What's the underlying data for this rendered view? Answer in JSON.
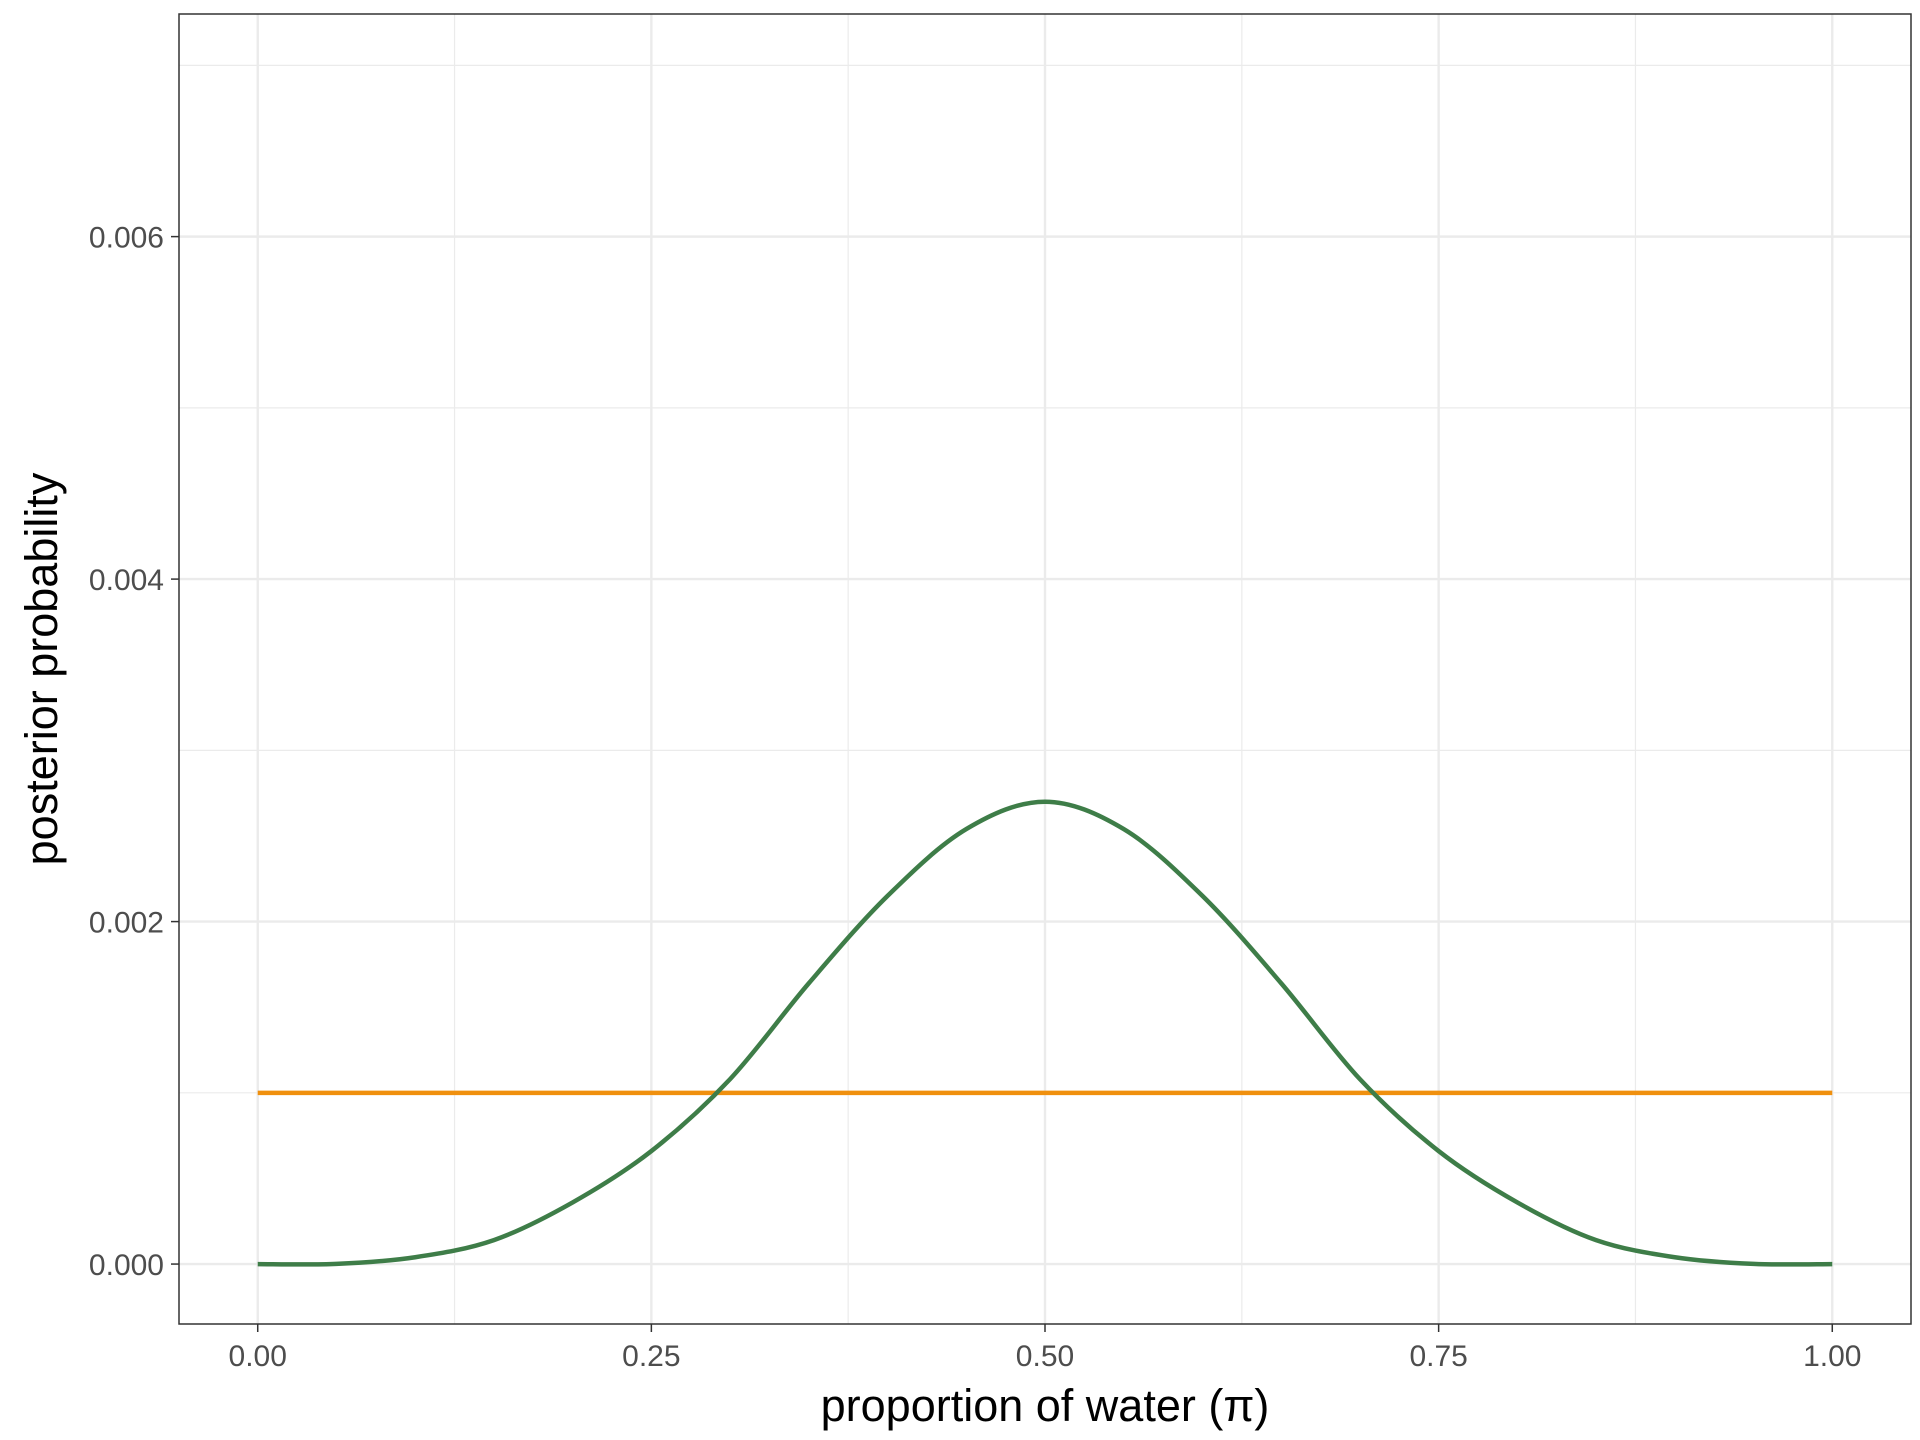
{
  "chart_data": {
    "type": "line",
    "title": "",
    "xlabel": "proportion of water (π)",
    "ylabel": "posterior probability",
    "xlim": [
      -0.05,
      1.05
    ],
    "ylim": [
      -0.00035,
      0.0073
    ],
    "x_ticks": [
      0,
      0.25,
      0.5,
      0.75,
      1
    ],
    "x_tick_labels": [
      "0.00",
      "0.25",
      "0.50",
      "0.75",
      "1.00"
    ],
    "y_ticks": [
      0,
      0.002,
      0.004,
      0.006
    ],
    "y_tick_labels": [
      "0.000",
      "0.002",
      "0.004",
      "0.006"
    ],
    "grid": true,
    "legend": "none",
    "series": [
      {
        "color": "#F0900E",
        "x": [
          0,
          1
        ],
        "y": [
          0.001,
          0.001
        ]
      },
      {
        "color": "#3E7D48",
        "x": [
          0,
          0.05,
          0.1,
          0.15,
          0.2,
          0.25,
          0.3,
          0.35,
          0.4,
          0.45,
          0.5,
          0.55,
          0.6,
          0.65,
          0.7,
          0.75,
          0.8,
          0.85,
          0.9,
          0.95,
          1
        ],
        "y": [
          0,
          1e-06,
          4e-05,
          0.00014,
          0.00036,
          0.00066,
          0.00108,
          0.00164,
          0.00215,
          0.00254,
          0.0027,
          0.00254,
          0.00215,
          0.00164,
          0.00108,
          0.00066,
          0.00036,
          0.00014,
          4e-05,
          1e-06,
          0
        ]
      }
    ]
  }
}
